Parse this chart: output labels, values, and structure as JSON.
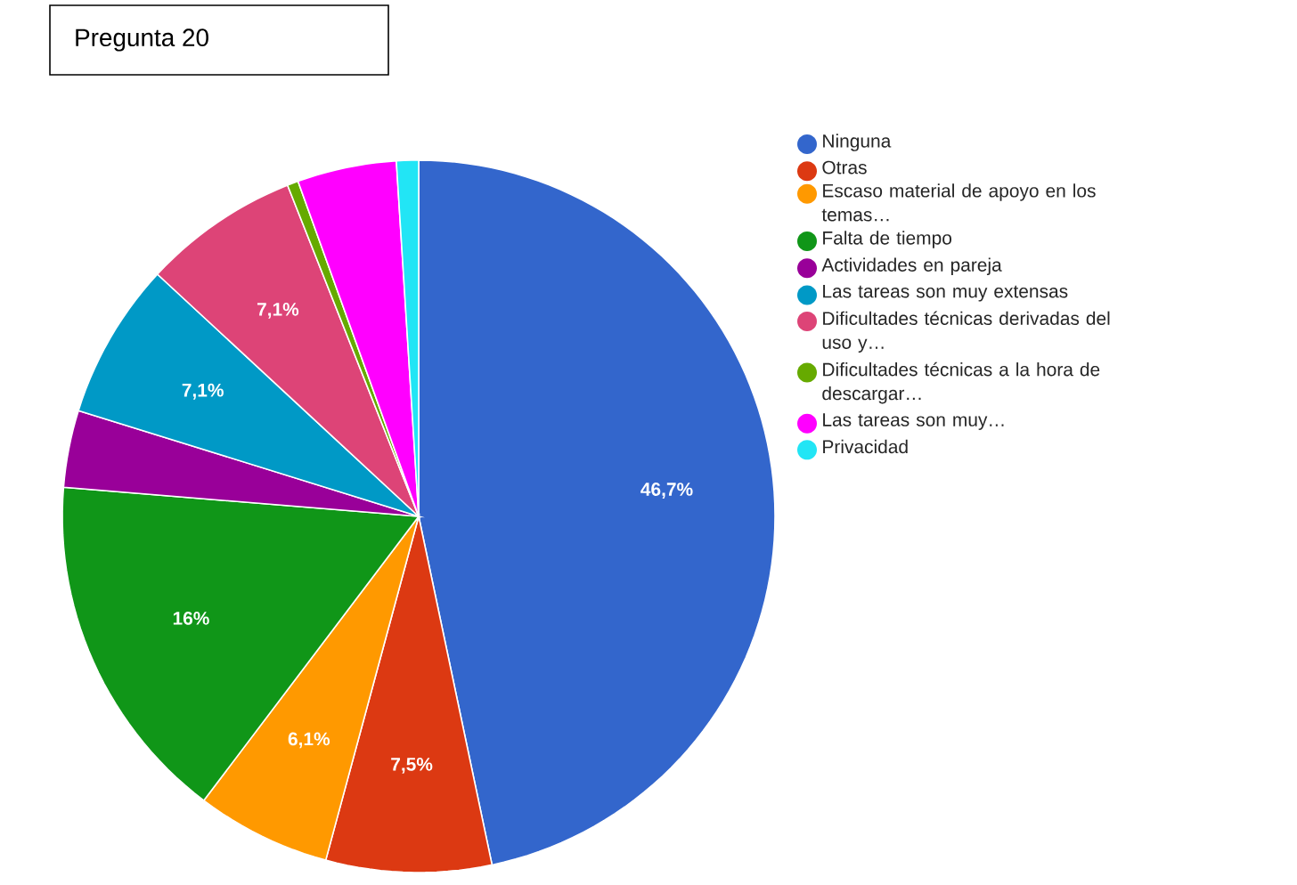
{
  "chart_data": {
    "type": "pie",
    "title": "Pregunta 20",
    "categories": [
      "Ninguna",
      "Otras",
      "Escaso material de apoyo en los temas…",
      "Falta de tiempo",
      "Actividades en pareja",
      "Las tareas son muy extensas",
      "Dificultades técnicas derivadas del uso y…",
      "Dificultades técnicas a la hora de descargar…",
      "Las tareas son muy…",
      "Privacidad"
    ],
    "values": [
      46.7,
      7.5,
      6.1,
      16,
      3.5,
      7.1,
      7.1,
      0.5,
      4.5,
      1.0
    ],
    "colors": [
      "#3366cc",
      "#dc3912",
      "#ff9900",
      "#109618",
      "#990099",
      "#0099c6",
      "#dd4477",
      "#66aa00",
      "#ff00ff",
      "#22e5f5"
    ],
    "value_labels": [
      "46,7%",
      "7,5%",
      "6,1%",
      "16%",
      null,
      "7,1%",
      "7,1%",
      null,
      null,
      null
    ],
    "legend": "right"
  }
}
